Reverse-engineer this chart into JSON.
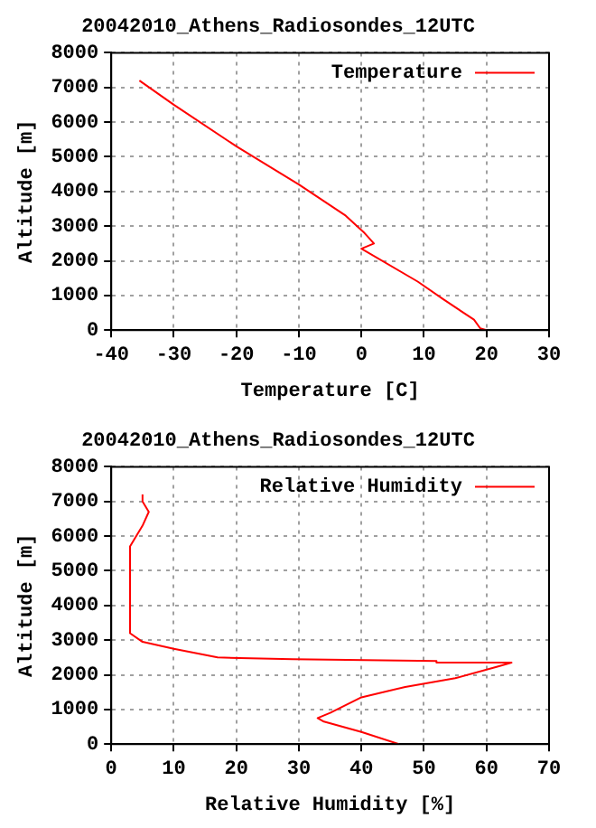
{
  "chart_data": [
    {
      "type": "line",
      "title": "20042010_Athens_Radiosondes_12UTC",
      "xlabel": "Temperature [C]",
      "ylabel": "Altitude [m]",
      "xlim": [
        -40,
        30
      ],
      "xticks": [
        -40,
        -30,
        -20,
        -10,
        0,
        10,
        20,
        30
      ],
      "ylim": [
        0,
        8000
      ],
      "yticks": [
        0,
        1000,
        2000,
        3000,
        4000,
        5000,
        6000,
        7000,
        8000
      ],
      "grid": true,
      "legend": "top right",
      "marker": "none",
      "line_style": "solid",
      "series": [
        {
          "name": "Temperature",
          "color": "#ff0000",
          "x": [
            20,
            19,
            18,
            13,
            9,
            0,
            2,
            0.5,
            -2.5,
            -10,
            -20,
            -30,
            -35.5
          ],
          "values": [
            0,
            50,
            300,
            900,
            1400,
            2350,
            2500,
            2800,
            3300,
            4200,
            5300,
            6500,
            7200
          ]
        }
      ]
    },
    {
      "type": "line",
      "title": "20042010_Athens_Radiosondes_12UTC",
      "xlabel": "Relative Humidity [%]",
      "ylabel": "Altitude [m]",
      "xlim": [
        0,
        70
      ],
      "xticks": [
        0,
        10,
        20,
        30,
        40,
        50,
        60,
        70
      ],
      "ylim": [
        0,
        8000
      ],
      "yticks": [
        0,
        1000,
        2000,
        3000,
        4000,
        5000,
        6000,
        7000,
        8000
      ],
      "grid": true,
      "legend": "top right",
      "marker": "none",
      "line_style": "solid",
      "series": [
        {
          "name": "Relative Humidity",
          "color": "#ff0000",
          "x": [
            46,
            40,
            34,
            33,
            35,
            40,
            47,
            55,
            62,
            64,
            52,
            52,
            29,
            17,
            10,
            5,
            3,
            3,
            5,
            6,
            5,
            5
          ],
          "values": [
            0,
            350,
            650,
            750,
            900,
            1350,
            1650,
            1900,
            2250,
            2350,
            2350,
            2400,
            2450,
            2500,
            2750,
            2950,
            3200,
            5700,
            6300,
            6700,
            7000,
            7200
          ]
        }
      ]
    }
  ]
}
